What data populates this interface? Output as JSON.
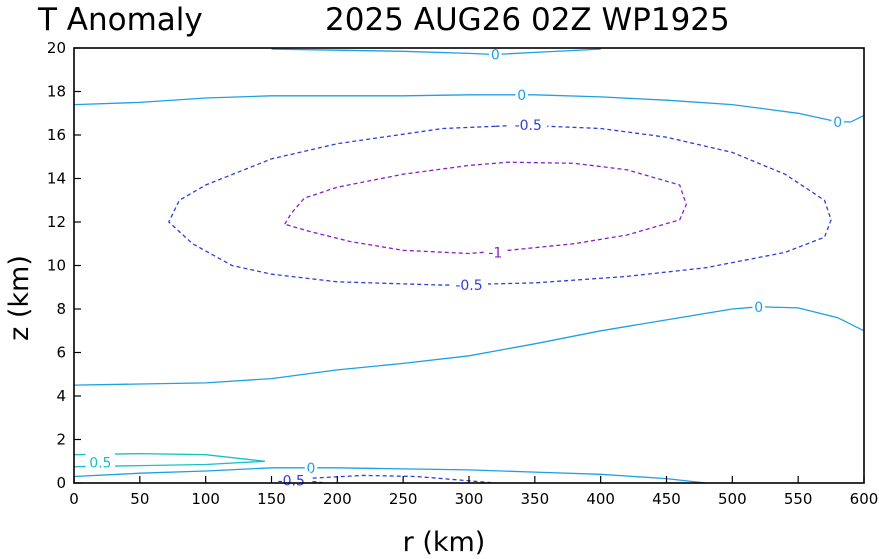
{
  "chart_data": {
    "type": "contour",
    "title_left": "T Anomaly",
    "title_right": "2025 AUG26 02Z   WP1925",
    "xlabel": "r (km)",
    "ylabel": "z (km)",
    "xlim": [
      0,
      600
    ],
    "ylim": [
      0,
      20
    ],
    "xticks": [
      "0",
      "50",
      "100",
      "150",
      "200",
      "250",
      "300",
      "350",
      "400",
      "450",
      "500",
      "550",
      "600"
    ],
    "yticks": [
      "0",
      "2",
      "4",
      "6",
      "8",
      "10",
      "12",
      "14",
      "16",
      "18",
      "20"
    ],
    "colors": {
      "zero": "#1ea0e6",
      "neg05": "#2f3fd8",
      "neg1": "#8a1fc8",
      "pos05": "#19c0c8"
    },
    "contours": [
      {
        "level": "0",
        "style": "solid",
        "color": "#1ea0e6",
        "points": [
          [
            150,
            19.95
          ],
          [
            200,
            19.9
          ],
          [
            250,
            19.85
          ],
          [
            300,
            19.75
          ],
          [
            320,
            19.7
          ],
          [
            350,
            19.8
          ],
          [
            400,
            19.95
          ]
        ],
        "labels": [
          {
            "text": "0",
            "x": 320,
            "y": 19.7
          }
        ]
      },
      {
        "level": "0",
        "style": "solid",
        "color": "#1ea0e6",
        "points": [
          [
            0,
            17.4
          ],
          [
            50,
            17.5
          ],
          [
            100,
            17.7
          ],
          [
            150,
            17.8
          ],
          [
            200,
            17.8
          ],
          [
            250,
            17.8
          ],
          [
            300,
            17.85
          ],
          [
            350,
            17.85
          ],
          [
            400,
            17.75
          ],
          [
            450,
            17.6
          ],
          [
            500,
            17.4
          ],
          [
            550,
            17.0
          ],
          [
            580,
            16.6
          ],
          [
            590,
            16.6
          ],
          [
            600,
            16.9
          ]
        ],
        "labels": [
          {
            "text": "0",
            "x": 340,
            "y": 17.85
          },
          {
            "text": "0",
            "x": 580,
            "y": 16.6
          }
        ]
      },
      {
        "level": "0",
        "style": "solid",
        "color": "#1ea0e6",
        "points": [
          [
            0,
            4.5
          ],
          [
            50,
            4.55
          ],
          [
            100,
            4.6
          ],
          [
            150,
            4.8
          ],
          [
            200,
            5.2
          ],
          [
            250,
            5.5
          ],
          [
            300,
            5.85
          ],
          [
            350,
            6.4
          ],
          [
            400,
            7.0
          ],
          [
            450,
            7.5
          ],
          [
            500,
            8.0
          ],
          [
            520,
            8.1
          ],
          [
            550,
            8.05
          ],
          [
            580,
            7.6
          ],
          [
            600,
            7.0
          ]
        ],
        "labels": [
          {
            "text": "0",
            "x": 520,
            "y": 8.1
          }
        ]
      },
      {
        "level": "0",
        "style": "solid",
        "color": "#1ea0e6",
        "points": [
          [
            0,
            0.3
          ],
          [
            50,
            0.45
          ],
          [
            100,
            0.55
          ],
          [
            150,
            0.7
          ],
          [
            200,
            0.7
          ],
          [
            250,
            0.65
          ],
          [
            300,
            0.6
          ],
          [
            350,
            0.5
          ],
          [
            400,
            0.4
          ],
          [
            450,
            0.2
          ],
          [
            480,
            0.0
          ]
        ],
        "labels": [
          {
            "text": "0",
            "x": 180,
            "y": 0.7
          }
        ]
      },
      {
        "level": "0.5",
        "style": "solid",
        "color": "#19c0c8",
        "points": [
          [
            0,
            1.3
          ],
          [
            50,
            1.35
          ],
          [
            100,
            1.3
          ],
          [
            145,
            1.0
          ],
          [
            100,
            0.85
          ],
          [
            50,
            0.8
          ],
          [
            0,
            0.75
          ]
        ],
        "labels": [
          {
            "text": "0.5",
            "x": 20,
            "y": 0.95
          }
        ]
      },
      {
        "level": "-0.5",
        "style": "dashed",
        "color": "#2f3fd8",
        "points": [
          [
            320,
            16.4
          ],
          [
            280,
            16.3
          ],
          [
            200,
            15.6
          ],
          [
            150,
            14.9
          ],
          [
            100,
            13.7
          ],
          [
            80,
            13.0
          ],
          [
            72,
            12.0
          ],
          [
            90,
            11.0
          ],
          [
            120,
            10.0
          ],
          [
            150,
            9.6
          ],
          [
            200,
            9.25
          ],
          [
            280,
            9.1
          ],
          [
            350,
            9.2
          ],
          [
            420,
            9.5
          ],
          [
            480,
            9.9
          ],
          [
            540,
            10.6
          ],
          [
            570,
            11.3
          ],
          [
            575,
            12.1
          ],
          [
            570,
            13.0
          ],
          [
            540,
            14.2
          ],
          [
            500,
            15.2
          ],
          [
            450,
            15.9
          ],
          [
            400,
            16.3
          ],
          [
            340,
            16.45
          ]
        ],
        "closed": true,
        "labels": [
          {
            "text": "-0.5",
            "x": 345,
            "y": 16.45
          },
          {
            "text": "-0.5",
            "x": 300,
            "y": 9.1
          }
        ]
      },
      {
        "level": "-1",
        "style": "dashed",
        "color": "#8a1fc8",
        "points": [
          [
            160,
            11.9
          ],
          [
            165,
            12.4
          ],
          [
            175,
            13.1
          ],
          [
            200,
            13.6
          ],
          [
            250,
            14.2
          ],
          [
            300,
            14.6
          ],
          [
            330,
            14.75
          ],
          [
            380,
            14.7
          ],
          [
            420,
            14.4
          ],
          [
            460,
            13.7
          ],
          [
            465,
            12.8
          ],
          [
            460,
            12.1
          ],
          [
            420,
            11.4
          ],
          [
            380,
            11.0
          ],
          [
            330,
            10.7
          ],
          [
            300,
            10.55
          ],
          [
            250,
            10.7
          ],
          [
            210,
            11.1
          ],
          [
            180,
            11.55
          ],
          [
            160,
            11.9
          ]
        ],
        "closed": true,
        "labels": [
          {
            "text": "-1",
            "x": 320,
            "y": 10.6
          }
        ]
      },
      {
        "level": "-0.5",
        "style": "dashed",
        "color": "#2f3fd8",
        "points": [
          [
            155,
            0.0
          ],
          [
            180,
            0.22
          ],
          [
            220,
            0.35
          ],
          [
            260,
            0.3
          ],
          [
            300,
            0.1
          ],
          [
            320,
            0.0
          ]
        ],
        "labels": [
          {
            "text": "-0.5",
            "x": 165,
            "y": 0.12
          }
        ]
      },
      {
        "level": "-1",
        "style": "dashed",
        "color": "#8a1fc8",
        "points": [
          [
            160,
            0.0
          ],
          [
            170,
            0.12
          ],
          [
            185,
            0.05
          ],
          [
            190,
            0.0
          ]
        ],
        "labels": []
      }
    ]
  }
}
